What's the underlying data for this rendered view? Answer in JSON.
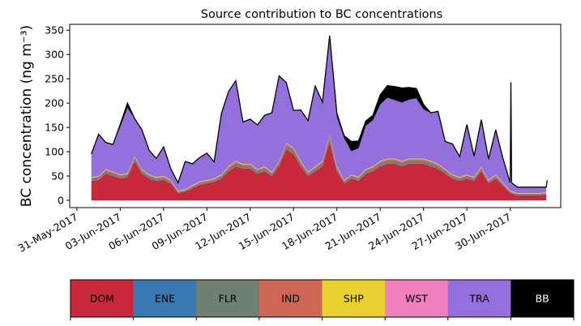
{
  "chart_data": {
    "type": "area",
    "stacked": true,
    "title": "Source contribution to BC concentrations",
    "xlabel": "",
    "ylabel": "BC concentration (ng m⁻³)",
    "ylim": [
      -15,
      362
    ],
    "yticks": [
      0,
      50,
      100,
      150,
      200,
      250,
      300,
      350
    ],
    "xlim": [
      -0.5,
      33.5
    ],
    "xtick_values": [
      0,
      3,
      6,
      9,
      12,
      15,
      18,
      21,
      24,
      27,
      30
    ],
    "xtick_labels": [
      "31-May-2017",
      "03-Jun-2017",
      "06-Jun-2017",
      "09-Jun-2017",
      "12-Jun-2017",
      "15-Jun-2017",
      "18-Jun-2017",
      "21-Jun-2017",
      "24-Jun-2017",
      "27-Jun-2017",
      "30-Jun-2017"
    ],
    "x_units": "days since 31-May-2017",
    "x": [
      1.0,
      1.5,
      2.0,
      2.5,
      3.0,
      3.5,
      4.0,
      4.5,
      5.0,
      5.5,
      6.0,
      6.5,
      7.0,
      7.5,
      8.0,
      8.5,
      9.0,
      9.5,
      10.0,
      10.5,
      11.0,
      11.5,
      12.0,
      12.5,
      13.0,
      13.5,
      14.0,
      14.5,
      15.0,
      15.5,
      16.0,
      16.5,
      17.0,
      17.5,
      18.0,
      18.5,
      19.0,
      19.5,
      20.0,
      20.5,
      21.0,
      21.5,
      22.0,
      22.5,
      23.0,
      23.5,
      24.0,
      24.5,
      25.0,
      25.5,
      26.0,
      26.5,
      27.0,
      27.5,
      28.0,
      28.5,
      29.0,
      29.5,
      30.0,
      30.5,
      31.0,
      31.5,
      32.0,
      32.5
    ],
    "series": [
      {
        "name": "DOM",
        "color": "#c8283a",
        "values": [
          40,
          42,
          55,
          50,
          45,
          48,
          80,
          55,
          45,
          40,
          42,
          35,
          15,
          18,
          25,
          32,
          35,
          38,
          45,
          60,
          70,
          65,
          65,
          55,
          60,
          50,
          70,
          105,
          95,
          70,
          50,
          60,
          70,
          120,
          60,
          35,
          45,
          40,
          55,
          60,
          70,
          75,
          75,
          70,
          75,
          75,
          75,
          70,
          65,
          55,
          45,
          40,
          45,
          40,
          60,
          35,
          45,
          30,
          15,
          10,
          10,
          10,
          10,
          12
        ]
      },
      {
        "name": "ENE",
        "color": "#3a78b4",
        "values": [
          0.5,
          0.5,
          0.5,
          0.5,
          0.5,
          0.5,
          0.5,
          0.5,
          0.5,
          0.5,
          0.5,
          0.5,
          0.5,
          0.5,
          0.5,
          0.5,
          0.5,
          0.5,
          0.5,
          0.5,
          0.5,
          0.5,
          0.5,
          0.5,
          0.5,
          0.5,
          0.5,
          0.5,
          0.5,
          0.5,
          0.5,
          0.5,
          0.5,
          0.5,
          0.5,
          0.5,
          0.5,
          0.5,
          0.5,
          0.5,
          0.5,
          0.5,
          0.5,
          0.5,
          0.5,
          0.5,
          0.5,
          0.5,
          0.5,
          0.5,
          0.5,
          0.5,
          0.5,
          0.5,
          0.5,
          0.5,
          0.5,
          0.5,
          0.5,
          0.5,
          0.5,
          0.5,
          0.5,
          0.5
        ]
      },
      {
        "name": "FLR",
        "color": "#6e8070",
        "values": [
          4,
          4,
          5,
          5,
          4,
          4,
          6,
          5,
          4,
          4,
          4,
          3,
          2,
          2,
          3,
          3,
          3,
          3,
          4,
          5,
          6,
          5,
          5,
          5,
          5,
          4,
          6,
          7,
          7,
          6,
          4,
          5,
          6,
          8,
          5,
          3,
          4,
          4,
          5,
          5,
          6,
          6,
          6,
          6,
          6,
          6,
          6,
          6,
          5,
          5,
          4,
          4,
          4,
          4,
          5,
          3,
          4,
          3,
          2,
          2,
          2,
          2,
          2,
          2
        ]
      },
      {
        "name": "IND",
        "color": "#cd6655",
        "values": [
          2,
          2,
          2,
          2,
          2,
          2,
          3,
          2,
          2,
          2,
          2,
          2,
          1,
          1,
          1,
          2,
          2,
          2,
          2,
          3,
          3,
          3,
          3,
          2,
          3,
          2,
          3,
          4,
          4,
          3,
          2,
          3,
          3,
          4,
          3,
          2,
          2,
          2,
          2,
          3,
          3,
          3,
          3,
          3,
          3,
          3,
          3,
          3,
          3,
          2,
          2,
          2,
          2,
          2,
          3,
          2,
          2,
          2,
          1,
          1,
          1,
          1,
          1,
          1
        ]
      },
      {
        "name": "SHP",
        "color": "#e8d030",
        "values": [
          1,
          1,
          1,
          1,
          1,
          1,
          1,
          1,
          1,
          1,
          1,
          1,
          1,
          1,
          1,
          1,
          1,
          1,
          1,
          1,
          1,
          1,
          1,
          1,
          1,
          1,
          1,
          1,
          1,
          1,
          1,
          1,
          1,
          1,
          1,
          1,
          1,
          1,
          1,
          1,
          1,
          1,
          1,
          1,
          1,
          1,
          1,
          1,
          1,
          1,
          1,
          1,
          1,
          1,
          1,
          1,
          1,
          1,
          1,
          1,
          1,
          1,
          1,
          1
        ]
      },
      {
        "name": "WST",
        "color": "#f07fbe",
        "values": [
          0.5,
          0.5,
          0.5,
          0.5,
          0.5,
          0.5,
          0.5,
          0.5,
          0.5,
          0.5,
          0.5,
          0.5,
          0.5,
          0.5,
          0.5,
          0.5,
          0.5,
          0.5,
          0.5,
          0.5,
          0.5,
          0.5,
          0.5,
          0.5,
          0.5,
          0.5,
          0.5,
          0.5,
          0.5,
          0.5,
          0.5,
          0.5,
          0.5,
          0.5,
          0.5,
          0.5,
          0.5,
          0.5,
          0.5,
          0.5,
          0.5,
          0.5,
          0.5,
          0.5,
          0.5,
          0.5,
          0.5,
          0.5,
          0.5,
          0.5,
          0.5,
          0.5,
          0.5,
          0.5,
          0.5,
          0.5,
          0.5,
          0.5,
          0.5,
          0.5,
          0.5,
          0.5,
          0.5,
          0.5
        ]
      },
      {
        "name": "TRA",
        "color": "#9370db",
        "values": [
          47,
          86,
          55,
          56,
          98,
          134,
          77,
          81,
          50,
          38,
          60,
          23,
          16,
          57,
          44,
          49,
          55,
          34,
          120,
          154,
          165,
          86,
          92,
          91,
          105,
          122,
          175,
          124,
          77,
          105,
          106,
          165,
          121,
          205,
          101,
          86,
          48,
          59,
          89,
          95,
          116,
          125,
          120,
          120,
          121,
          124,
          101,
          99,
          108,
          57,
          63,
          42,
          103,
          43,
          96,
          43,
          92,
          49,
          16,
          12,
          12,
          12,
          12,
          10
        ]
      },
      {
        "name": "BB",
        "color": "#000000",
        "values": [
          0,
          0,
          0,
          0,
          5,
          10,
          0,
          0,
          0,
          0,
          0,
          0,
          0,
          0,
          0,
          0,
          0,
          0,
          5,
          0,
          0,
          0,
          0,
          0,
          0,
          0,
          0,
          0,
          0,
          0,
          0,
          0,
          0,
          0,
          8,
          5,
          20,
          15,
          10,
          10,
          20,
          25,
          28,
          30,
          25,
          20,
          10,
          0,
          0,
          0,
          0,
          0,
          0,
          0,
          0,
          0,
          0,
          0,
          0,
          0,
          0,
          0,
          0,
          0
        ]
      }
    ],
    "total_spikes": [
      {
        "x": 30.0,
        "value": 243
      },
      {
        "x": 32.5,
        "value": 40
      }
    ]
  },
  "legend": {
    "items": [
      {
        "label": "DOM",
        "color": "#c8283a",
        "text_color": "#000000"
      },
      {
        "label": "ENE",
        "color": "#3a78b4",
        "text_color": "#000000"
      },
      {
        "label": "FLR",
        "color": "#6e8070",
        "text_color": "#000000"
      },
      {
        "label": "IND",
        "color": "#cd6655",
        "text_color": "#000000"
      },
      {
        "label": "SHP",
        "color": "#e8d030",
        "text_color": "#000000"
      },
      {
        "label": "WST",
        "color": "#f07fbe",
        "text_color": "#000000"
      },
      {
        "label": "TRA",
        "color": "#9370db",
        "text_color": "#000000"
      },
      {
        "label": "BB",
        "color": "#000000",
        "text_color": "#ffffff"
      }
    ]
  }
}
